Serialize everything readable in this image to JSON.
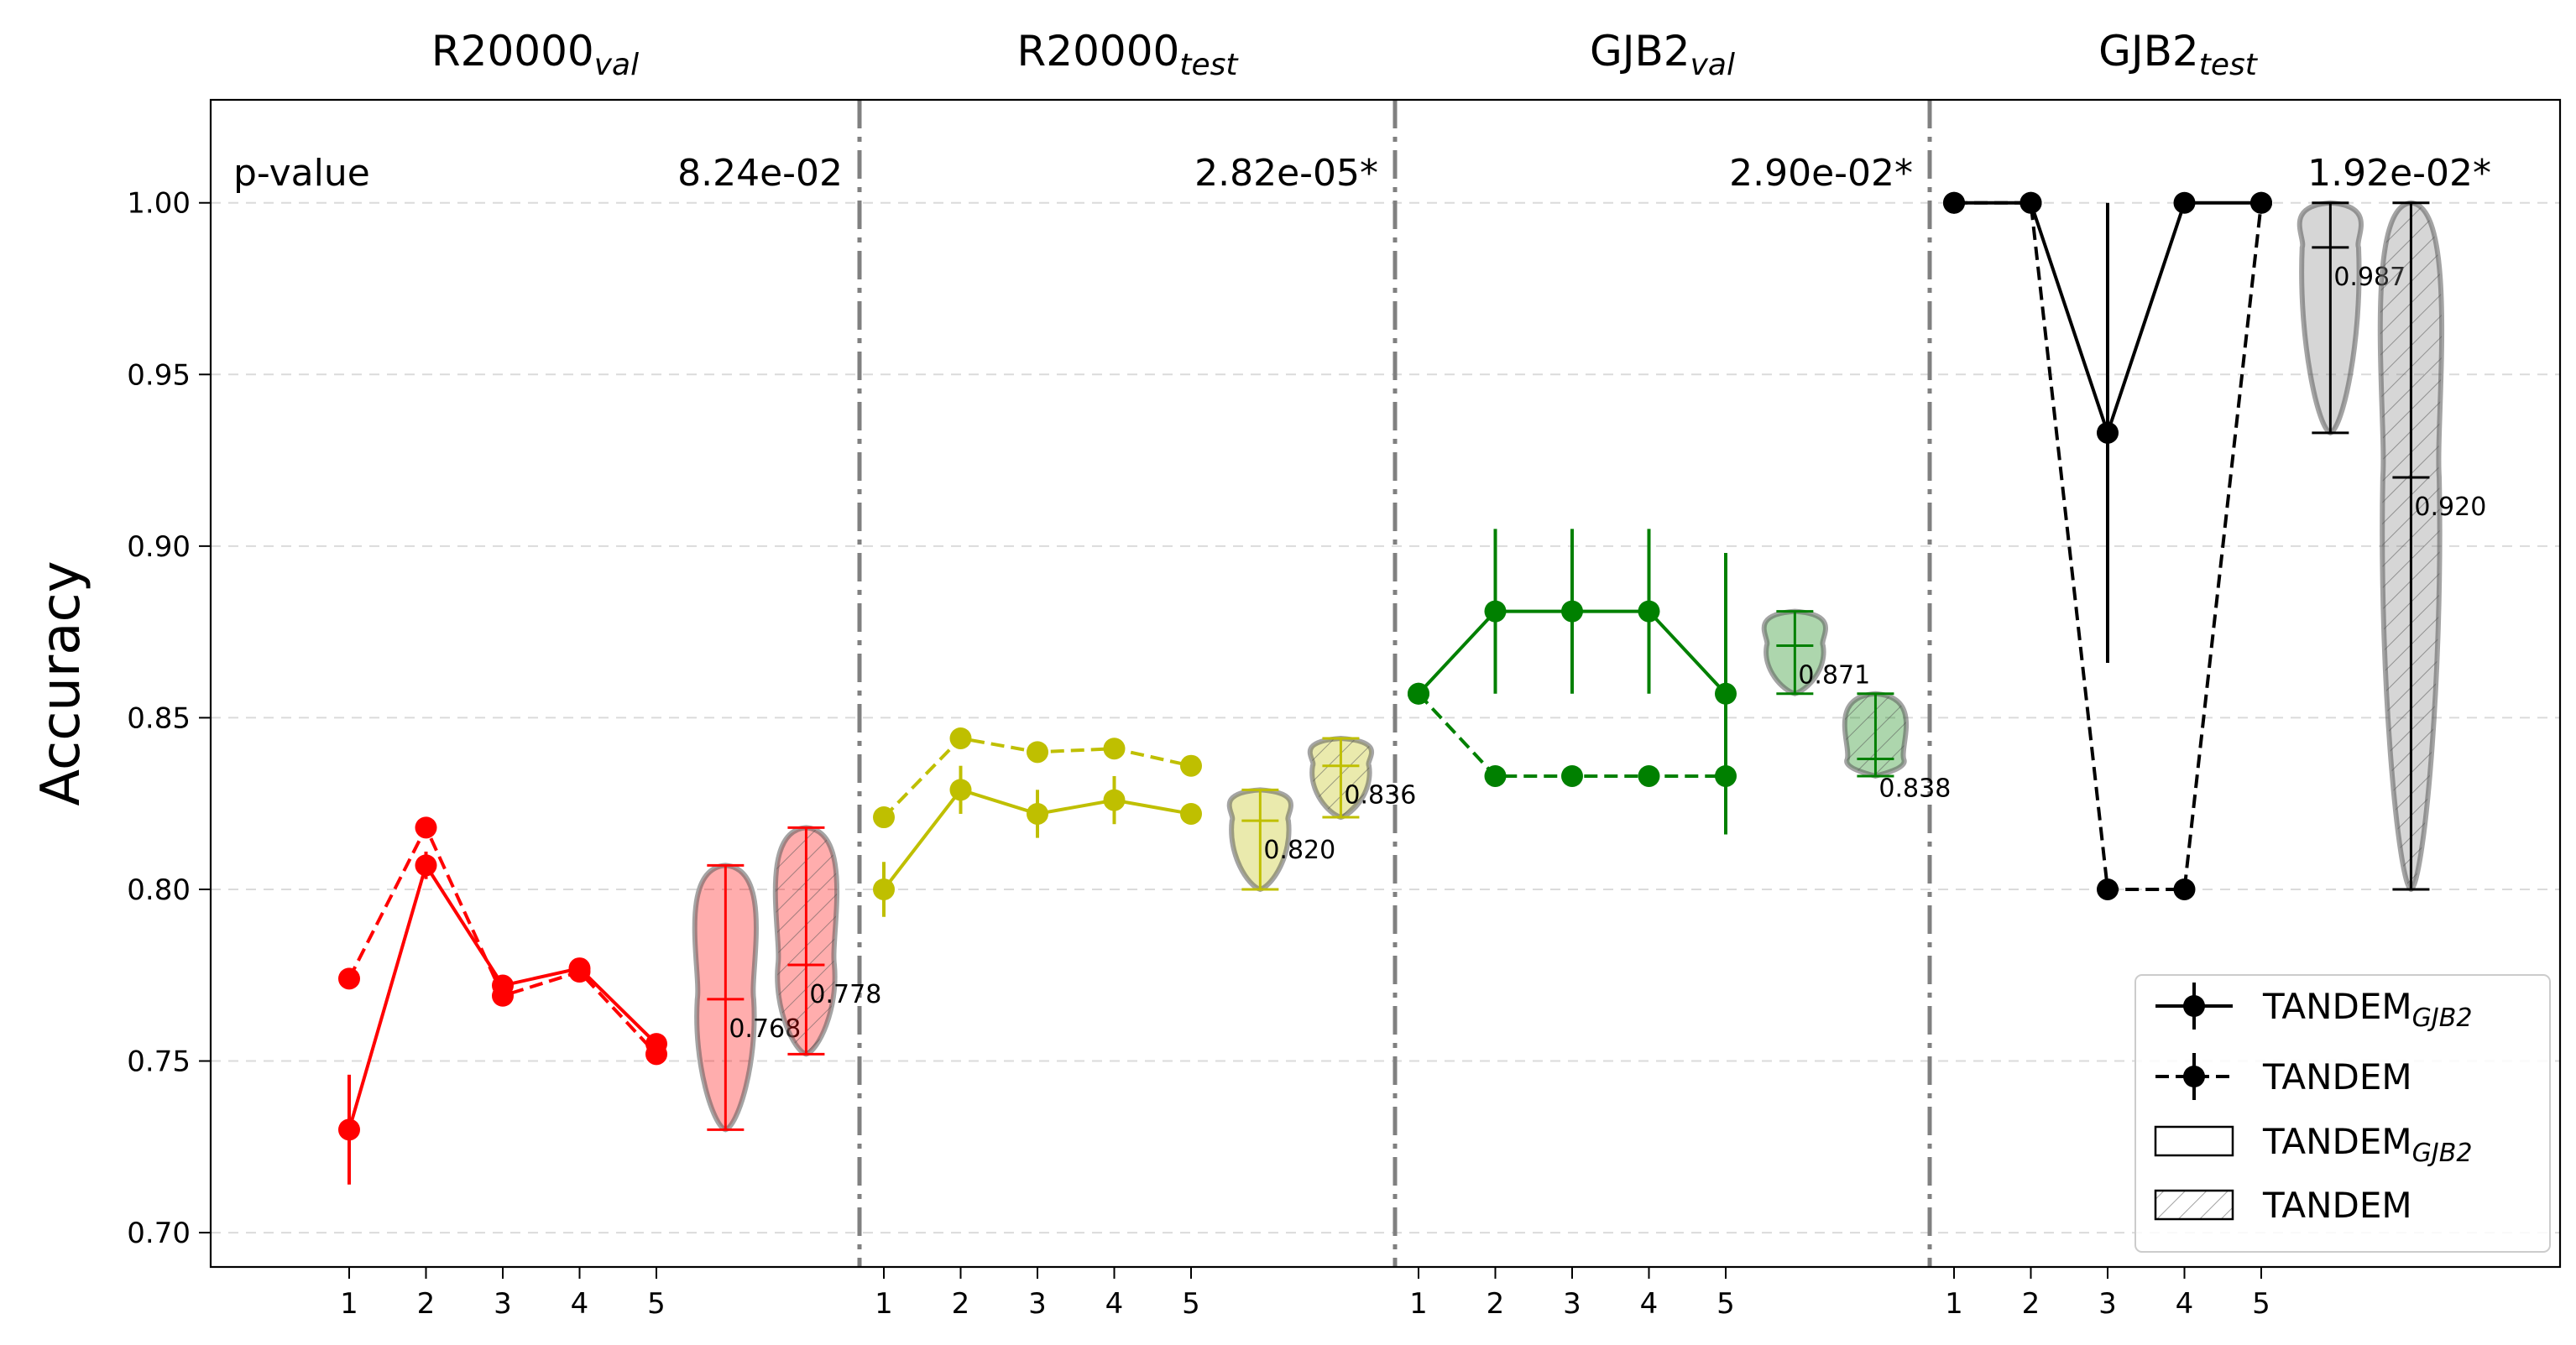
{
  "chart_data": {
    "type": "line",
    "ylabel": "Accuracy",
    "ylim": [
      0.69,
      1.03
    ],
    "yticks": [
      "0.70",
      "0.75",
      "0.80",
      "0.85",
      "0.90",
      "0.95",
      "1.00"
    ],
    "grid": "horizontal dashed",
    "pvalue_label": "p-value",
    "x_ticks": [
      "1",
      "2",
      "3",
      "4",
      "5"
    ],
    "panels": [
      {
        "title": "R20000",
        "title_sub": "val",
        "color": "#ff0000",
        "pvalue": "8.24e-02",
        "tandem_gjb2": {
          "values": [
            0.73,
            0.807,
            0.772,
            0.777,
            0.755
          ],
          "err": [
            0.016,
            0.004,
            0.003,
            0.003,
            0.002
          ]
        },
        "tandem": {
          "values": [
            0.774,
            0.818,
            0.769,
            0.776,
            0.752
          ],
          "err": [
            0.002,
            0.002,
            0.002,
            0.002,
            0.002
          ]
        },
        "violin_gjb2": {
          "min": 0.73,
          "max": 0.807,
          "mean": 0.768,
          "label": "0.768"
        },
        "violin_tandem": {
          "min": 0.752,
          "max": 0.818,
          "mean": 0.778,
          "label": "0.778"
        }
      },
      {
        "title": "R20000",
        "title_sub": "test",
        "color": "#bfbf00",
        "pvalue": "2.82e-05*",
        "tandem_gjb2": {
          "values": [
            0.8,
            0.829,
            0.822,
            0.826,
            0.822
          ],
          "err": [
            0.008,
            0.007,
            0.007,
            0.007,
            0.003
          ]
        },
        "tandem": {
          "values": [
            0.821,
            0.844,
            0.84,
            0.841,
            0.836
          ],
          "err": [
            0.002,
            0.002,
            0.002,
            0.002,
            0.002
          ]
        },
        "violin_gjb2": {
          "min": 0.8,
          "max": 0.829,
          "mean": 0.82,
          "label": "0.820"
        },
        "violin_tandem": {
          "min": 0.821,
          "max": 0.844,
          "mean": 0.836,
          "label": "0.836"
        }
      },
      {
        "title": "GJB2",
        "title_sub": "val",
        "color": "#008000",
        "pvalue": "2.90e-02*",
        "tandem_gjb2": {
          "values": [
            0.857,
            0.881,
            0.881,
            0.881,
            0.857
          ],
          "err": [
            0.0,
            0.024,
            0.024,
            0.024,
            0.041
          ]
        },
        "tandem": {
          "values": [
            0.857,
            0.833,
            0.833,
            0.833,
            0.833
          ],
          "err": [
            0.0,
            0.0,
            0.0,
            0.0,
            0.0
          ]
        },
        "violin_gjb2": {
          "min": 0.857,
          "max": 0.881,
          "mean": 0.871,
          "label": "0.871"
        },
        "violin_tandem": {
          "min": 0.833,
          "max": 0.857,
          "mean": 0.838,
          "label": "0.838"
        }
      },
      {
        "title": "GJB2",
        "title_sub": "test",
        "color": "#000000",
        "pvalue": "1.92e-02*",
        "tandem_gjb2": {
          "values": [
            1.0,
            1.0,
            0.933,
            1.0,
            1.0
          ],
          "err": [
            0.0,
            0.0,
            0.067,
            0.0,
            0.0
          ]
        },
        "tandem": {
          "values": [
            1.0,
            1.0,
            0.8,
            0.8,
            1.0
          ],
          "err": [
            0.0,
            0.0,
            0.0,
            0.0,
            0.0
          ]
        },
        "violin_gjb2": {
          "min": 0.933,
          "max": 1.0,
          "mean": 0.987,
          "label": "0.987"
        },
        "violin_tandem": {
          "min": 0.8,
          "max": 1.0,
          "mean": 0.92,
          "label": "0.920"
        }
      }
    ],
    "legend": {
      "position": "lower-right",
      "entries": [
        {
          "label": "TANDEM",
          "sub": "GJB2",
          "style": "solid-line-marker"
        },
        {
          "label": "TANDEM",
          "sub": "",
          "style": "dashed-line-marker"
        },
        {
          "label": "TANDEM",
          "sub": "GJB2",
          "style": "box-empty"
        },
        {
          "label": "TANDEM",
          "sub": "",
          "style": "box-hatched"
        }
      ]
    }
  }
}
